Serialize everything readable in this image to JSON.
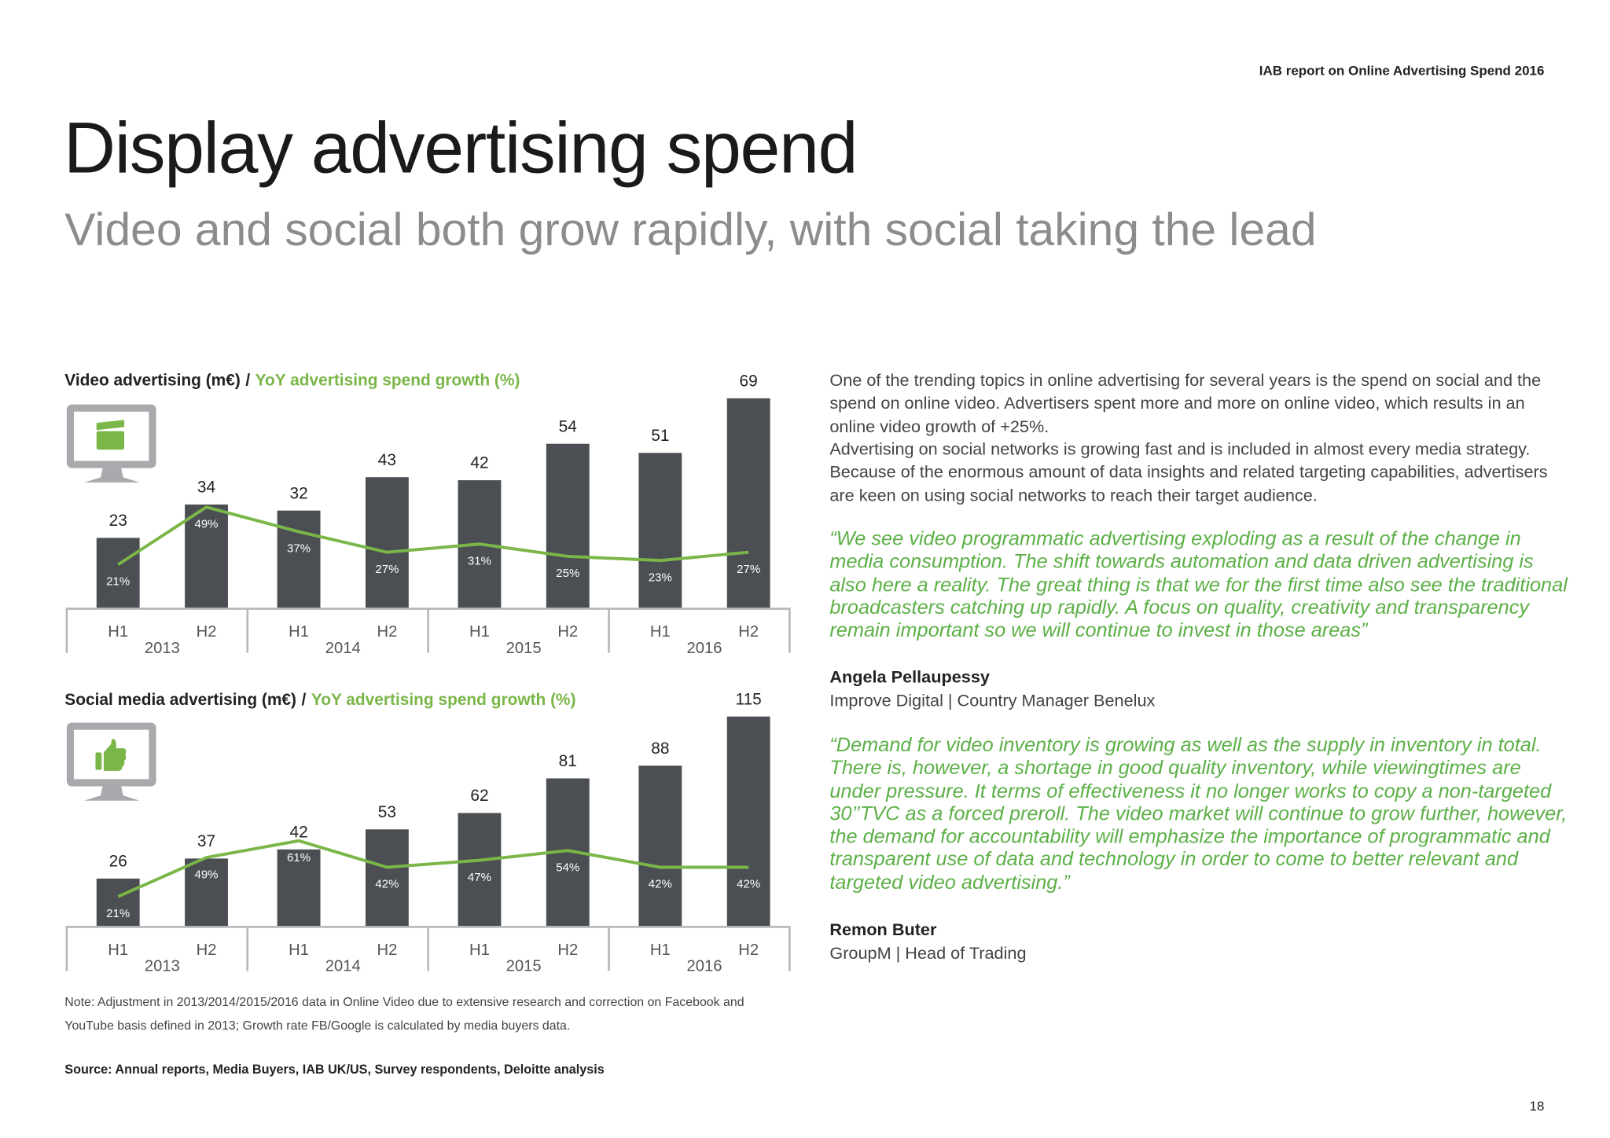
{
  "header": "IAB report on Online Advertising Spend 2016",
  "title": "Display advertising spend",
  "subtitle": "Video and social both grow rapidly, with social taking the lead",
  "chart_data": [
    {
      "type": "bar",
      "legend_separator": "/",
      "categories": [
        "H1",
        "H2",
        "H1",
        "H2",
        "H1",
        "H2",
        "H1",
        "H2"
      ],
      "groups": [
        "2013",
        "2014",
        "2015",
        "2016"
      ],
      "ylim": [
        0,
        69
      ],
      "y2lim": [
        0,
        102
      ],
      "series": [
        {
          "name": "Video advertising (m€)",
          "type": "bar",
          "color": "#4b4e53",
          "values": [
            23,
            34,
            32,
            43,
            42,
            54,
            51,
            69
          ]
        },
        {
          "name": "YoY advertising spend growth (%)",
          "type": "line",
          "axis": "y2",
          "color": "#7ab648",
          "values": [
            21,
            49,
            37,
            27,
            31,
            25,
            23,
            27
          ],
          "value_labels": [
            "21%",
            "49%",
            "37%",
            "27%",
            "31%",
            "25%",
            "23%",
            "27%"
          ]
        }
      ]
    },
    {
      "type": "bar",
      "legend_separator": "/",
      "categories": [
        "H1",
        "H2",
        "H1",
        "H2",
        "H1",
        "H2",
        "H1",
        "H2"
      ],
      "groups": [
        "2013",
        "2014",
        "2015",
        "2016"
      ],
      "ylim": [
        0,
        115
      ],
      "y2lim": [
        0,
        150
      ],
      "series": [
        {
          "name": "Social media advertising (m€)",
          "type": "bar",
          "color": "#4b4e53",
          "values": [
            26,
            37,
            42,
            53,
            62,
            81,
            88,
            115
          ]
        },
        {
          "name": "YoY advertising spend growth (%)",
          "type": "line",
          "axis": "y2",
          "color": "#7ab648",
          "values": [
            21,
            49,
            61,
            42,
            47,
            54,
            42,
            42
          ],
          "value_labels": [
            "21%",
            "49%",
            "61%",
            "42%",
            "47%",
            "54%",
            "42%",
            "42%"
          ]
        }
      ]
    }
  ],
  "note": "Note: Adjustment in 2013/2014/2015/2016 data in Online Video due to extensive research and correction on Facebook and YouTube basis defined in 2013; Growth rate FB/Google is calculated by media buyers data.",
  "source": "Source: Annual reports, Media Buyers, IAB UK/US, Survey respondents, Deloitte analysis",
  "body": {
    "paragraphs": [
      "One of the trending topics in online advertising for several years is the spend on social and the spend on online video. Advertisers spent more and more on online video, which results in an online video growth of +25%.",
      "Advertising on social networks is growing fast and is included in almost every media strategy. Because of the enormous amount of data insights and related targeting capabilities, advertisers are keen on using social networks to reach their target audience."
    ],
    "quotes": [
      {
        "text": "“We see video programmatic advertising exploding as a result of the change in media consumption. The shift towards automation and data driven advertising is also here a reality. The great thing is that we for the first time also see the traditional broadcasters catching up rapidly. A focus on quality, creativity and transparency remain important so we will continue to invest in those areas”",
        "name": "Angela Pellaupessy",
        "role": "Improve Digital | Country Manager Benelux"
      },
      {
        "text": "“Demand for video inventory is growing as well as the supply in inventory in total. There is, however, a shortage in good quality inventory, while viewingtimes are under pressure. It terms of effectiveness it no longer works to copy a non-targeted 30’’TVC as a forced preroll. The video market will continue to grow further, however, the demand for accountability will emphasize the importance of programmatic and transparent use of data and technology in order to come to better relevant and targeted video advertising.”",
        "name": "Remon Buter",
        "role": "GroupM | Head of Trading"
      }
    ]
  },
  "page_number": "18"
}
